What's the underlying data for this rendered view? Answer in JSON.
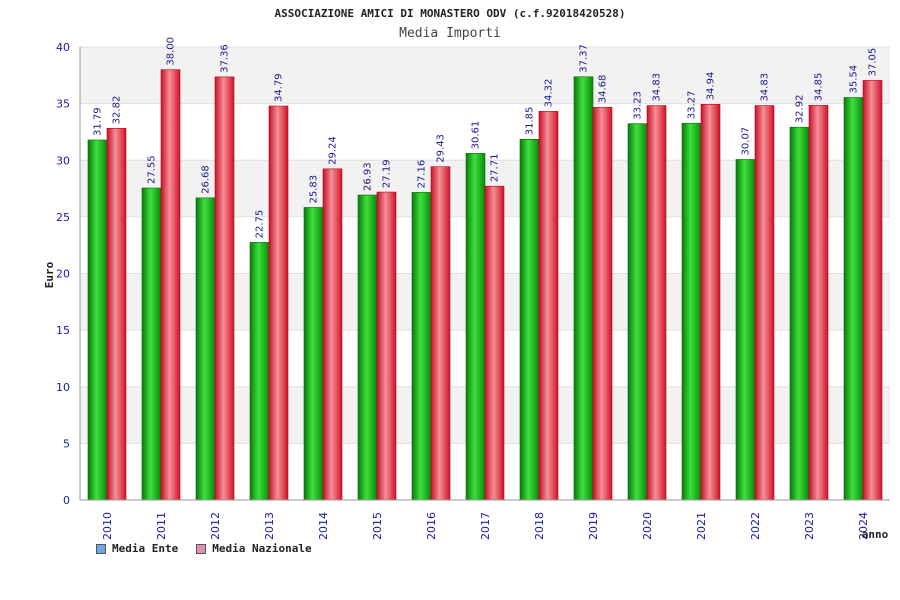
{
  "chart_data": {
    "type": "bar",
    "title": "ASSOCIAZIONE AMICI DI MONASTERO ODV (c.f.92018420528)",
    "subtitle": "Media Importi",
    "xlabel": "anno",
    "ylabel": "Euro",
    "ylim": [
      0,
      40
    ],
    "yticks": [
      "0",
      "5",
      "10",
      "15",
      "20",
      "25",
      "30",
      "35",
      "40"
    ],
    "categories": [
      "2010",
      "2011",
      "2012",
      "2013",
      "2014",
      "2015",
      "2016",
      "2017",
      "2018",
      "2019",
      "2020",
      "2021",
      "2022",
      "2023",
      "2024"
    ],
    "series": [
      {
        "name": "Media Ente",
        "values": [
          31.79,
          27.55,
          26.68,
          22.75,
          25.83,
          26.93,
          27.16,
          30.61,
          31.85,
          37.37,
          33.23,
          33.27,
          30.07,
          32.92,
          35.54
        ],
        "labels": [
          "31.79",
          "27.55",
          "26.68",
          "22.75",
          "25.83",
          "26.93",
          "27.16",
          "30.61",
          "31.85",
          "37.37",
          "33.23",
          "33.27",
          "30.07",
          "32.92",
          "35.54"
        ],
        "color": "#1db31d",
        "legend_color": "#6fa8e8"
      },
      {
        "name": "Media Nazionale",
        "values": [
          32.82,
          38.0,
          37.36,
          34.79,
          29.24,
          27.19,
          29.43,
          27.71,
          34.32,
          34.68,
          34.83,
          34.94,
          34.83,
          34.85,
          37.05
        ],
        "labels": [
          "32.82",
          "38.00",
          "37.36",
          "34.79",
          "29.24",
          "27.19",
          "29.43",
          "27.71",
          "34.32",
          "34.68",
          "34.83",
          "34.94",
          "34.83",
          "34.85",
          "37.05"
        ],
        "color": "#e8333d",
        "legend_color": "#e08fb4"
      }
    ],
    "grid": true,
    "legend_position": "bottom-left"
  }
}
